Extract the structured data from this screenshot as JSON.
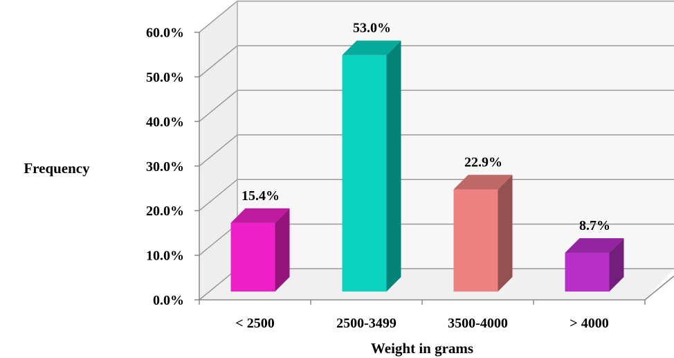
{
  "chart_data": {
    "type": "bar",
    "three_d": true,
    "title": "",
    "xlabel": "Weight in grams",
    "ylabel": "Frequency",
    "categories": [
      "< 2500",
      "2500-3499",
      "3500-4000",
      "> 4000"
    ],
    "values": [
      15.4,
      53.0,
      22.9,
      8.7
    ],
    "value_labels": [
      "15.4%",
      "53.0%",
      "22.9%",
      "8.7%"
    ],
    "ylim": [
      0,
      60
    ],
    "yticks": [
      0,
      10,
      20,
      30,
      40,
      50,
      60
    ],
    "ytick_labels": [
      "0.0%",
      "10.0%",
      "20.0%",
      "30.0%",
      "40.0%",
      "50.0%",
      "60.0%"
    ],
    "grid": true,
    "legend": "none",
    "colors": [
      "#f020c8",
      "#08d4c0",
      "#ee8282",
      "#b830c8"
    ]
  }
}
